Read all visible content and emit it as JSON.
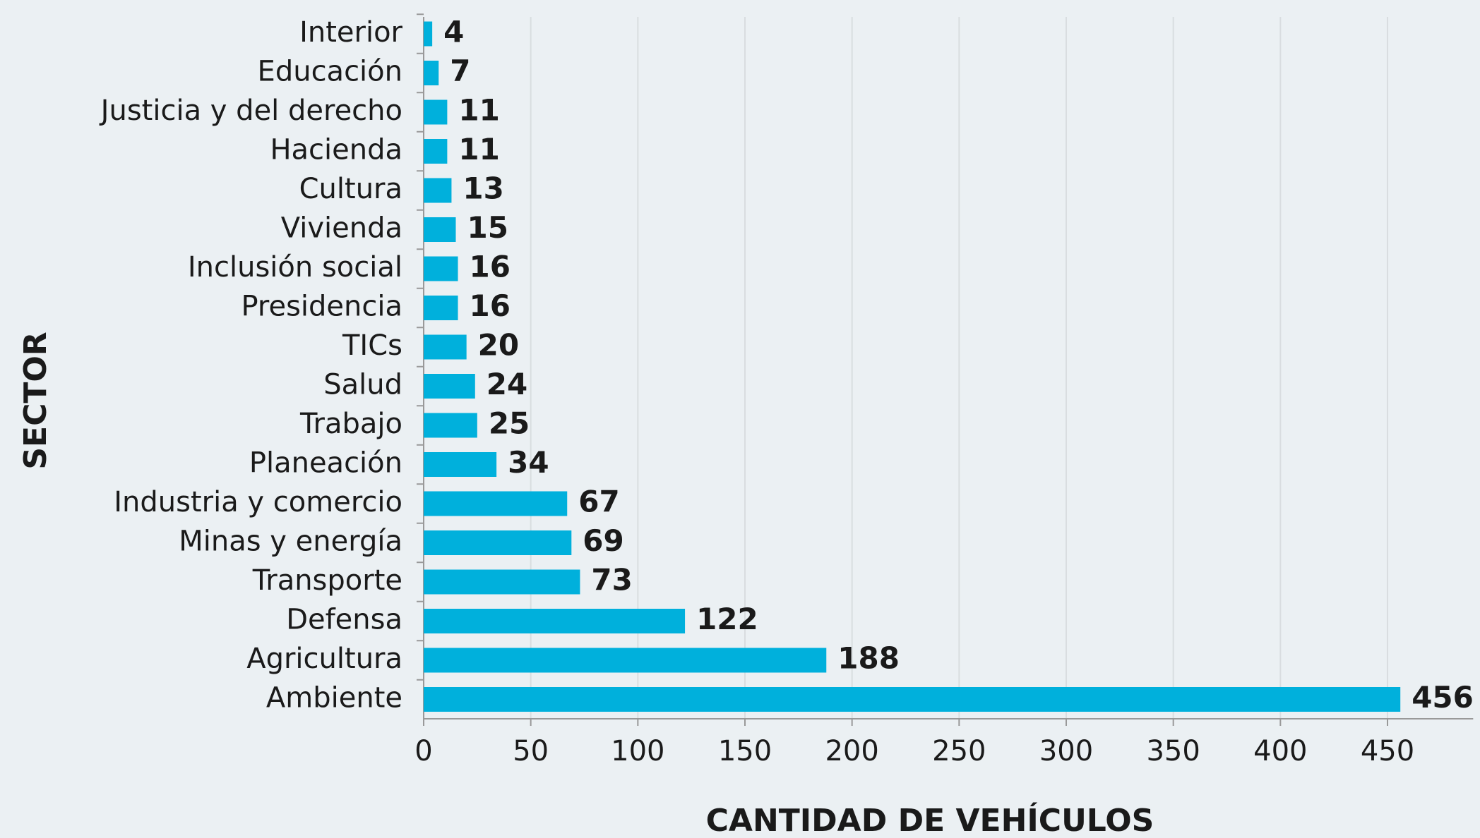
{
  "chart_data": {
    "type": "barh",
    "xlabel": "CANTIDAD DE VEHÍCULOS",
    "ylabel": "SECTOR",
    "categories": [
      "Interior",
      "Educación",
      "Justicia y del derecho",
      "Hacienda",
      "Cultura",
      "Vivienda",
      "Inclusión social",
      "Presidencia",
      "TICs",
      "Salud",
      "Trabajo",
      "Planeación",
      "Industria y comercio",
      "Minas y energía",
      "Transporte",
      "Defensa",
      "Agricultura",
      "Ambiente"
    ],
    "values": [
      4,
      7,
      11,
      11,
      13,
      15,
      16,
      16,
      20,
      24,
      25,
      34,
      67,
      69,
      73,
      122,
      188,
      456
    ],
    "color": "#00b0dc",
    "xlim": [
      0,
      490
    ],
    "xticks": [
      0,
      50,
      100,
      150,
      200,
      250,
      300,
      350,
      400,
      450
    ],
    "grid": true
  }
}
